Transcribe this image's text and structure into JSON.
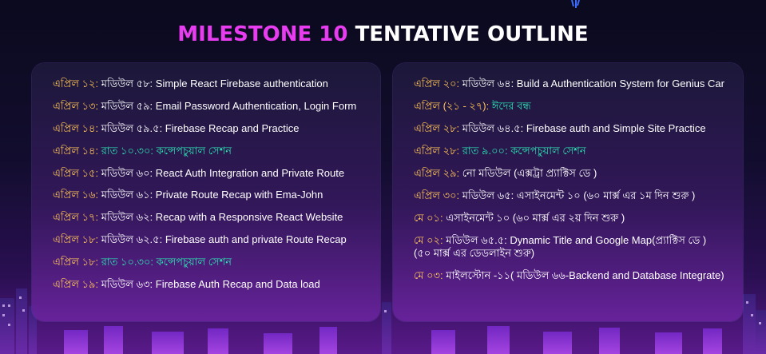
{
  "header": {
    "title_accent": "MILESTONE 10",
    "title_rest": "TENTATIVE OUTLINE"
  },
  "colors": {
    "date": "#ffc457",
    "special": "#2de2b5",
    "accent": "#e83cf0",
    "text": "#ffffff"
  },
  "left_items": [
    {
      "date": "এপ্রিল ১২:",
      "text": "মডিউল ৫৮: Simple React Firebase authentication",
      "special": false
    },
    {
      "date": "এপ্রিল ১৩:",
      "text": "মডিউল ৫৯: Email Password Authentication, Login Form",
      "special": false
    },
    {
      "date": "এপ্রিল ১৪:",
      "text": "মডিউল ৫৯.৫: Firebase Recap and Practice",
      "special": false
    },
    {
      "date": "এপ্রিল ১৪:",
      "text": "রাত ১০.৩০: কন্সেপচুয়াল সেশন",
      "special": true
    },
    {
      "date": "এপ্রিল ১৫:",
      "text": "মডিউল ৬০: React Auth Integration and Private Route",
      "special": false
    },
    {
      "date": "এপ্রিল ১৬:",
      "text": "মডিউল ৬১: Private Route Recap with Ema-John",
      "special": false
    },
    {
      "date": "এপ্রিল ১৭:",
      "text": "মডিউল ৬২: Recap with a Responsive React Website",
      "special": false
    },
    {
      "date": "এপ্রিল ১৮:",
      "text": "মডিউল ৬২.৫: Firebase auth and private Route Recap",
      "special": false
    },
    {
      "date": "এপ্রিল ১৮:",
      "text": "রাত ১০.৩০: কন্সেপচুয়াল সেশন",
      "special": true
    },
    {
      "date": "এপ্রিল ১৯:",
      "text": "মডিউল ৬৩: Firebase Auth Recap and Data load",
      "special": false
    }
  ],
  "right_items": [
    {
      "date": "এপ্রিল ২০:",
      "text": "মডিউল ৬৪: Build a Authentication System for Genius Car",
      "special": false
    },
    {
      "date": "এপ্রিল (২১ - ২৭):",
      "text": "ঈদের বন্ধ",
      "special": true
    },
    {
      "date": "এপ্রিল ২৮:",
      "text": "মডিউল ৬৪.৫: Firebase auth and Simple Site Practice",
      "special": false
    },
    {
      "date": "এপ্রিল ২৮:",
      "text": "রাত ৯.০০: কন্সেপচুয়াল সেশন",
      "special": true
    },
    {
      "date": "এপ্রিল ২৯:",
      "text": "নো মডিউল (এক্সট্রা প্র্যাক্টিস ডে )",
      "special": false
    },
    {
      "date": "এপ্রিল ৩০:",
      "text": "মডিউল ৬৫: এসাইনমেন্ট ১০ (৬০ মার্ক্স এর ১ম দিন শুরু )",
      "special": false
    },
    {
      "date": "মে ০১:",
      "text": "এসাইনমেন্ট ১০ (৬০ মার্ক্স এর ২য় দিন শুরু )",
      "special": false
    },
    {
      "date": "মে ০২:",
      "text": "মডিউল ৬৫.৫: Dynamic Title and Google Map(প্র্যাক্টিস ডে )",
      "text2": "(৫০ মার্ক্স এর ডেডলাইন শুরু)",
      "special": false
    },
    {
      "date": "মে ০৩:",
      "text": "মাইলস্টোন -১১( মডিউল ৬৬-Backend and Database Integrate)",
      "special": false
    }
  ]
}
